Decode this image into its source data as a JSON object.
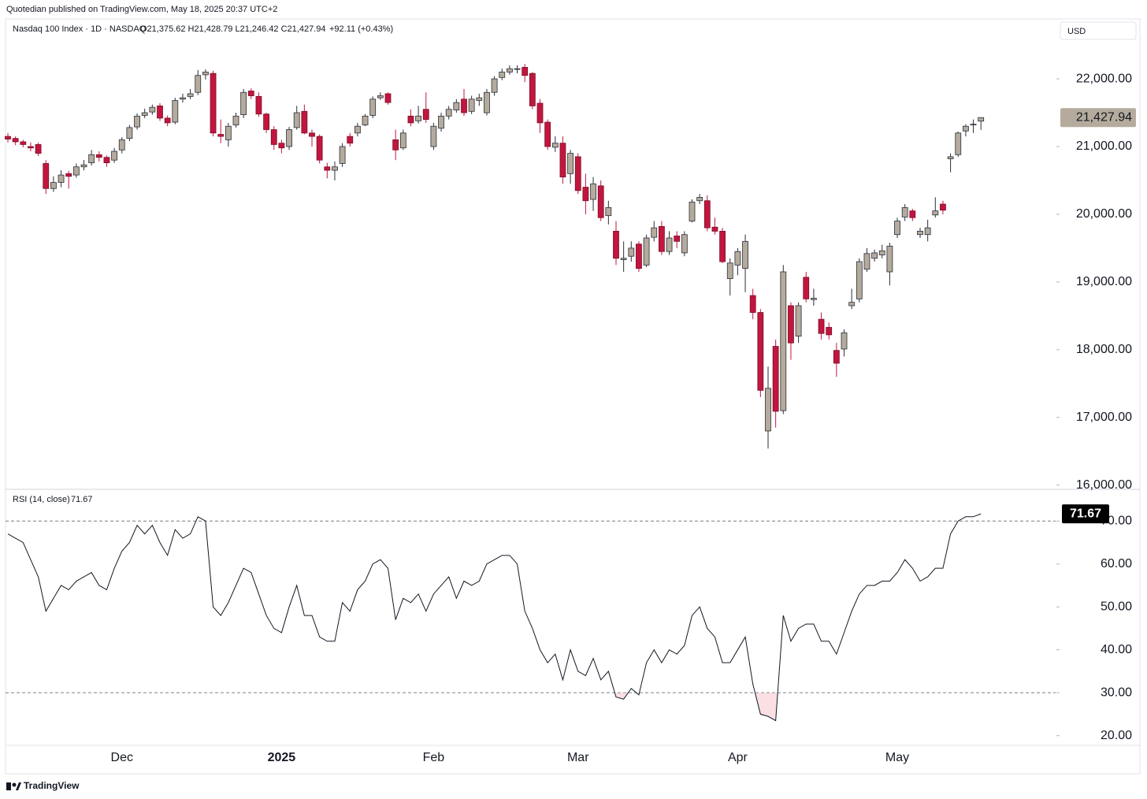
{
  "header": {
    "attribution": "Quotedian published on TradingView.com, May 18, 2025 20:37 UTC+2",
    "footer": "TradingView"
  },
  "chart_data": [
    {
      "type": "candlestick",
      "legend": "Nasdaq 100 Index · 1D · NASDAQ",
      "ohlc_text": "O21,375.62  H21,428.79  L21,246.42  C21,427.94",
      "change_text": "+92.11 (+0.43%)",
      "currency": "USD",
      "last_price_label": "21,427.94",
      "up_color": "#b5ab9d",
      "down_color": "#c2163f",
      "categories": [
        null,
        null,
        null,
        null,
        null,
        null,
        null,
        null,
        null,
        null,
        null,
        null,
        null,
        null,
        null,
        "Dec",
        null,
        null,
        null,
        null,
        null,
        null,
        null,
        null,
        null,
        null,
        null,
        null,
        null,
        null,
        null,
        null,
        null,
        null,
        null,
        null,
        "2025",
        null,
        null,
        null,
        null,
        null,
        null,
        null,
        null,
        null,
        null,
        null,
        null,
        null,
        null,
        null,
        null,
        null,
        null,
        null,
        "Feb",
        null,
        null,
        null,
        null,
        null,
        null,
        null,
        null,
        null,
        null,
        null,
        null,
        null,
        null,
        null,
        null,
        null,
        null,
        "Mar",
        null,
        null,
        null,
        null,
        null,
        null,
        null,
        null,
        null,
        null,
        null,
        null,
        null,
        null,
        null,
        null,
        null,
        null,
        null,
        null,
        "Apr",
        null,
        null,
        null,
        null,
        null,
        null,
        null,
        null,
        null,
        null,
        null,
        null,
        null,
        null,
        null,
        null,
        null,
        null,
        null,
        null,
        "May",
        null,
        null,
        null,
        null,
        null,
        null,
        null,
        null,
        null,
        null,
        null
      ],
      "open": [
        21150,
        21120,
        21070,
        21000,
        21030,
        20750,
        20380,
        20470,
        20600,
        20580,
        20700,
        20760,
        20880,
        20840,
        20800,
        20950,
        21120,
        21290,
        21460,
        21510,
        21600,
        21420,
        21360,
        21700,
        21740,
        21800,
        22060,
        22080,
        21180,
        21100,
        21320,
        21470,
        21820,
        21740,
        21480,
        21250,
        21050,
        21000,
        21280,
        21520,
        21200,
        21150,
        20700,
        20650,
        20750,
        21150,
        21200,
        21320,
        21460,
        21720,
        21780,
        21100,
        20980,
        21450,
        21380,
        21550,
        21000,
        21270,
        21450,
        21540,
        21700,
        21520,
        21680,
        21500,
        21800,
        22020,
        22100,
        22140,
        22170,
        22080,
        21640,
        21360,
        20990,
        21050,
        20600,
        20850,
        20400,
        20220,
        20420,
        19980,
        19750,
        19330,
        19380,
        19560,
        19250,
        19660,
        19820,
        19450,
        19680,
        19430,
        19900,
        20200,
        20200,
        19810,
        19750,
        19050,
        19250,
        19200,
        18800,
        18550,
        16800,
        18050,
        17100,
        18650,
        18200,
        19070,
        18740,
        18450,
        18330,
        17990,
        18010,
        18650,
        18750,
        19190,
        19350,
        19400,
        19150,
        19700,
        19960,
        20050,
        19700,
        19700,
        19990,
        20150,
        20820,
        20880,
        21230,
        21330,
        21375.62
      ],
      "high": [
        21200,
        21150,
        21100,
        21060,
        21060,
        20800,
        20560,
        20650,
        20640,
        20750,
        20800,
        20950,
        20930,
        20870,
        20980,
        21140,
        21320,
        21490,
        21560,
        21620,
        21640,
        21460,
        21720,
        21780,
        21850,
        22130,
        22140,
        22120,
        21400,
        21350,
        21500,
        21850,
        21860,
        21800,
        21500,
        21300,
        21100,
        21290,
        21600,
        21620,
        21250,
        21180,
        20760,
        20780,
        21050,
        21200,
        21350,
        21480,
        21740,
        21800,
        21800,
        21250,
        21250,
        21550,
        21600,
        21800,
        21350,
        21500,
        21600,
        21700,
        21850,
        21750,
        21780,
        21850,
        22040,
        22150,
        22200,
        22200,
        22220,
        22100,
        21700,
        21400,
        21150,
        21150,
        20950,
        20900,
        20600,
        20550,
        20500,
        20200,
        19900,
        19600,
        19600,
        19600,
        19700,
        19900,
        19900,
        19750,
        19750,
        19750,
        20220,
        20300,
        20280,
        19950,
        19800,
        19350,
        19500,
        19700,
        18900,
        18600,
        17750,
        18150,
        19250,
        18700,
        18700,
        19150,
        18900,
        18550,
        18400,
        18100,
        18300,
        18900,
        19350,
        19500,
        19480,
        19550,
        19580,
        19950,
        20150,
        20080,
        19800,
        19920,
        20250,
        20200,
        20900,
        21220,
        21330,
        21400,
        21428.79
      ],
      "low": [
        21060,
        21020,
        20990,
        20930,
        20860,
        20300,
        20330,
        20400,
        20380,
        20540,
        20650,
        20720,
        20780,
        20700,
        20760,
        20900,
        21080,
        21250,
        21420,
        21470,
        21380,
        21300,
        21330,
        21650,
        21700,
        21760,
        21990,
        21150,
        21050,
        21000,
        21280,
        21420,
        21700,
        21440,
        21200,
        20950,
        20900,
        20950,
        21250,
        21180,
        21000,
        20750,
        20530,
        20500,
        20700,
        21000,
        21150,
        21300,
        21420,
        21690,
        21620,
        20800,
        20950,
        21300,
        21340,
        21350,
        20950,
        21220,
        21400,
        21500,
        21450,
        21480,
        21600,
        21460,
        21750,
        21980,
        22060,
        22080,
        21950,
        21550,
        21200,
        20950,
        20920,
        20450,
        20450,
        20300,
        20000,
        20050,
        19900,
        19850,
        19250,
        19150,
        19300,
        19150,
        19220,
        19600,
        19400,
        19400,
        19500,
        19380,
        19880,
        20150,
        19750,
        19700,
        19280,
        18800,
        19100,
        18850,
        18450,
        17300,
        16540,
        16850,
        17050,
        17850,
        18100,
        18700,
        18650,
        18150,
        18150,
        17600,
        17900,
        18600,
        18700,
        19150,
        19300,
        19350,
        18950,
        19650,
        19900,
        19900,
        19650,
        19600,
        19950,
        20000,
        20620,
        20850,
        21150,
        21200,
        21246.42
      ],
      "close": [
        21110,
        21070,
        21030,
        20980,
        20900,
        20380,
        20470,
        20580,
        20560,
        20700,
        20730,
        20880,
        20840,
        20760,
        20930,
        21100,
        21280,
        21450,
        21500,
        21580,
        21420,
        21350,
        21680,
        21720,
        21780,
        22050,
        22100,
        21200,
        21150,
        21300,
        21450,
        21800,
        21750,
        21480,
        21250,
        21030,
        20980,
        21250,
        21500,
        21200,
        21150,
        20800,
        20650,
        20700,
        21000,
        21050,
        21300,
        21450,
        21700,
        21750,
        21650,
        20950,
        21200,
        21350,
        21450,
        21400,
        21300,
        21450,
        21550,
        21650,
        21500,
        21700,
        21720,
        21800,
        22000,
        22100,
        22150,
        22150,
        22050,
        21600,
        21350,
        21000,
        21050,
        20550,
        20900,
        20350,
        20200,
        20450,
        19950,
        20100,
        19350,
        19350,
        19500,
        19200,
        19650,
        19800,
        19450,
        19650,
        19600,
        19700,
        20180,
        20250,
        19800,
        19750,
        19300,
        19280,
        19450,
        19600,
        18550,
        17400,
        17430,
        17090,
        19150,
        18100,
        18650,
        18750,
        18760,
        18240,
        18220,
        17800,
        18250,
        18700,
        19300,
        19420,
        19430,
        19460,
        19530,
        19900,
        20100,
        19950,
        19750,
        19800,
        20050,
        20060,
        20850,
        21200,
        21300,
        21330,
        21427.94
      ],
      "ylim": [
        15950,
        22815
      ],
      "yticks": [
        {
          "value": 16000,
          "label": "16,000.00"
        },
        {
          "value": 17000,
          "label": "17,000.00"
        },
        {
          "value": 18000,
          "label": "18,000.00"
        },
        {
          "value": 19000,
          "label": "19,000.00"
        },
        {
          "value": 20000,
          "label": "20,000.00"
        },
        {
          "value": 21000,
          "label": "21,000.00"
        },
        {
          "value": 22000,
          "label": "22,000.00"
        }
      ]
    },
    {
      "type": "line",
      "title": "RSI (14, close)",
      "last_value_label": "71.67",
      "color": "#131722",
      "levels": [
        70,
        30
      ],
      "values": [
        67,
        66,
        65,
        61,
        57,
        49,
        52,
        55,
        54,
        56,
        57,
        58,
        55,
        54,
        59,
        63,
        65,
        69,
        67,
        69,
        65,
        62,
        68,
        66,
        67,
        71,
        70,
        50,
        48,
        51,
        55,
        59,
        58,
        53,
        48,
        45,
        44,
        50,
        55,
        48,
        48,
        43,
        42,
        42,
        51,
        49,
        54,
        56,
        60,
        61,
        59,
        47,
        52,
        51,
        53,
        49,
        53,
        55,
        57,
        52,
        56,
        55,
        56,
        60,
        61,
        62,
        62,
        60,
        49,
        45,
        40,
        37,
        39,
        33,
        40,
        35,
        34,
        38,
        33,
        35,
        29,
        28.5,
        31,
        29.5,
        37,
        40,
        37,
        40,
        39,
        41,
        48,
        50,
        45,
        43,
        37,
        37,
        40,
        43,
        32,
        25,
        24.5,
        23.5,
        48,
        42,
        45,
        46,
        46,
        42,
        42,
        39,
        44,
        49,
        53,
        55,
        55,
        56,
        56,
        58,
        61,
        59,
        56,
        57,
        59,
        59,
        67,
        70,
        71,
        71,
        71.67
      ],
      "ylim": [
        17,
        77.2
      ],
      "yticks": [
        {
          "value": 20,
          "label": "20.00"
        },
        {
          "value": 30,
          "label": "30.00"
        },
        {
          "value": 40,
          "label": "40.00"
        },
        {
          "value": 50,
          "label": "50.00"
        },
        {
          "value": 60,
          "label": "60.00"
        },
        {
          "value": 70,
          "label": "70.00"
        }
      ]
    }
  ]
}
